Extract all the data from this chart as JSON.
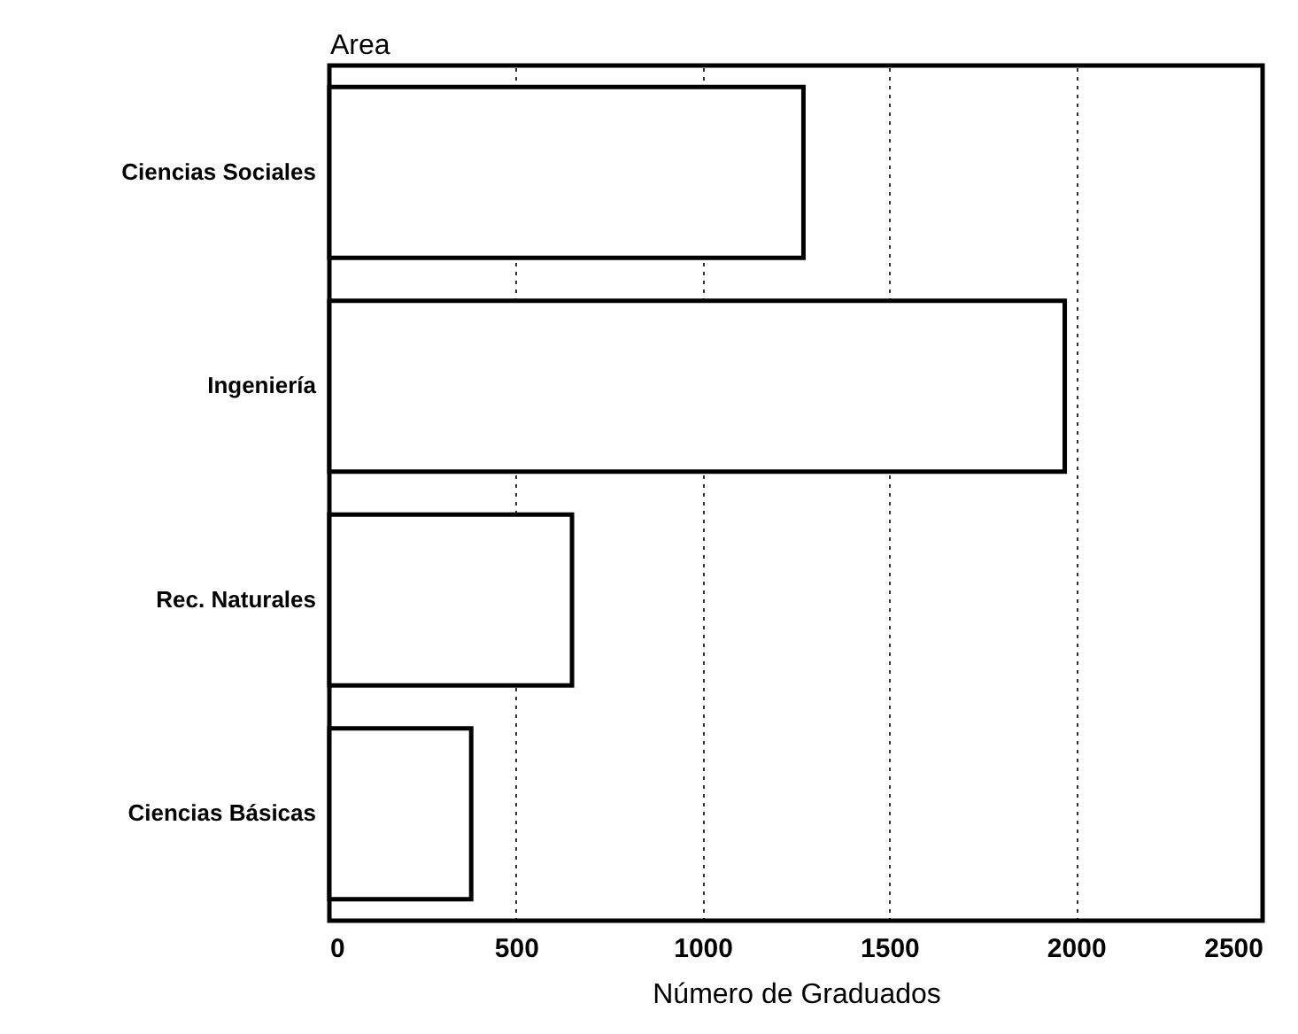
{
  "chart_data": {
    "type": "bar",
    "orientation": "horizontal",
    "categories": [
      "Ciencias Sociales",
      "Ingeniería",
      "Rec. Naturales",
      "Ciencias Básicas"
    ],
    "values": [
      1270,
      1970,
      650,
      380
    ],
    "color": "#ffffff",
    "xlabel": "Número de Graduados",
    "ylabel": "Area",
    "xlim": [
      0,
      2500
    ],
    "xticks": [
      0,
      500,
      1000,
      1500,
      2000,
      2500
    ],
    "grid": "x"
  }
}
